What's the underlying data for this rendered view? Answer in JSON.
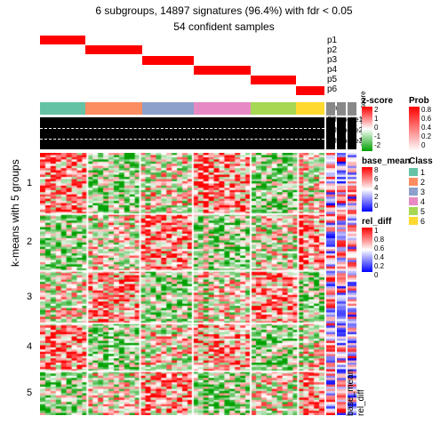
{
  "title": "6 subgroups, 14897 signatures (96.4%) with fdr < 0.05",
  "subtitle": "54 confident samples",
  "ylabel": "k-means with 5 groups",
  "prob_labels": [
    "p1",
    "p2",
    "p3",
    "p4",
    "p5",
    "p6"
  ],
  "class_label": "Class",
  "class_colors": [
    "#66c2a5",
    "#fc8d62",
    "#8da0cb",
    "#e78ac3",
    "#a6d854",
    "#ffd92f"
  ],
  "class_widths": [
    0.16,
    0.2,
    0.18,
    0.2,
    0.16,
    0.1
  ],
  "sil_labels": [
    "Silhouette1",
    "Silhouette2",
    "Silhouette3"
  ],
  "bottom_labels": [
    "base_mean",
    "rel_diff"
  ],
  "kmeans_groups": [
    1,
    2,
    3,
    4,
    5
  ],
  "kgroup_heights": [
    0.23,
    0.22,
    0.2,
    0.18,
    0.17
  ],
  "heatmap_colors": {
    "low": "#00a000",
    "mid": "#ffffff",
    "high": "#ff0000"
  },
  "zscore": {
    "title": "z-score",
    "colors": [
      "#00a000",
      "#ffffff",
      "#ff0000"
    ],
    "ticks": [
      "2",
      "1",
      "0",
      "-1",
      "-2"
    ]
  },
  "base_mean": {
    "title": "base_mean",
    "colors": [
      "#0000ff",
      "#ffffff",
      "#ff0000"
    ],
    "ticks": [
      "8",
      "6",
      "4",
      "2",
      "0"
    ]
  },
  "rel_diff": {
    "title": "rel_diff",
    "colors": [
      "#0000ff",
      "#ffffff",
      "#ff0000"
    ],
    "ticks": [
      "1",
      "0.8",
      "0.6",
      "0.4",
      "0.2",
      "0"
    ]
  },
  "prob": {
    "title": "Prob",
    "colors": [
      "#ffffff",
      "#ff0000"
    ],
    "ticks": [
      "0.8",
      "0.6",
      "0.4",
      "0.2",
      "0"
    ]
  },
  "class_legend": {
    "title": "Class",
    "items": [
      "1",
      "2",
      "3",
      "4",
      "5",
      "6"
    ]
  },
  "anno_top": {
    "score_label": "score",
    "sil_label": "silhouette"
  }
}
